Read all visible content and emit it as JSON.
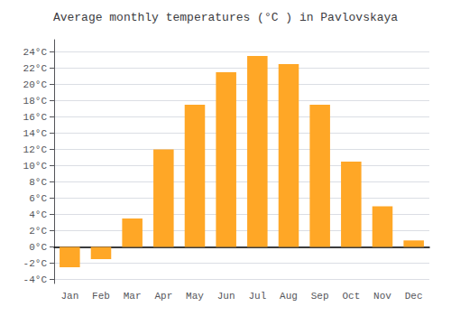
{
  "chart_data": {
    "type": "bar",
    "title": "Average monthly temperatures (°C ) in Pavlovskaya",
    "categories": [
      "Jan",
      "Feb",
      "Mar",
      "Apr",
      "May",
      "Jun",
      "Jul",
      "Aug",
      "Sep",
      "Oct",
      "Nov",
      "Dec"
    ],
    "values": [
      -2.5,
      -1.5,
      3.5,
      12.0,
      17.5,
      21.5,
      23.5,
      22.5,
      17.5,
      10.5,
      5.0,
      0.8
    ],
    "color": "#FFA726",
    "ylim": [
      -4.5,
      25.5
    ],
    "yticks": [
      {
        "value": -4,
        "label": "-4°C"
      },
      {
        "value": -2,
        "label": "-2°C"
      },
      {
        "value": 0,
        "label": "0°C"
      },
      {
        "value": 2,
        "label": "2°C"
      },
      {
        "value": 4,
        "label": "4°C"
      },
      {
        "value": 6,
        "label": "6°C"
      },
      {
        "value": 8,
        "label": "8°C"
      },
      {
        "value": 10,
        "label": "10°C"
      },
      {
        "value": 12,
        "label": "12°C"
      },
      {
        "value": 14,
        "label": "14°C"
      },
      {
        "value": 16,
        "label": "16°C"
      },
      {
        "value": 18,
        "label": "18°C"
      },
      {
        "value": 20,
        "label": "20°C"
      },
      {
        "value": 22,
        "label": "22°C"
      },
      {
        "value": 24,
        "label": "24°C"
      }
    ],
    "grid": true
  }
}
